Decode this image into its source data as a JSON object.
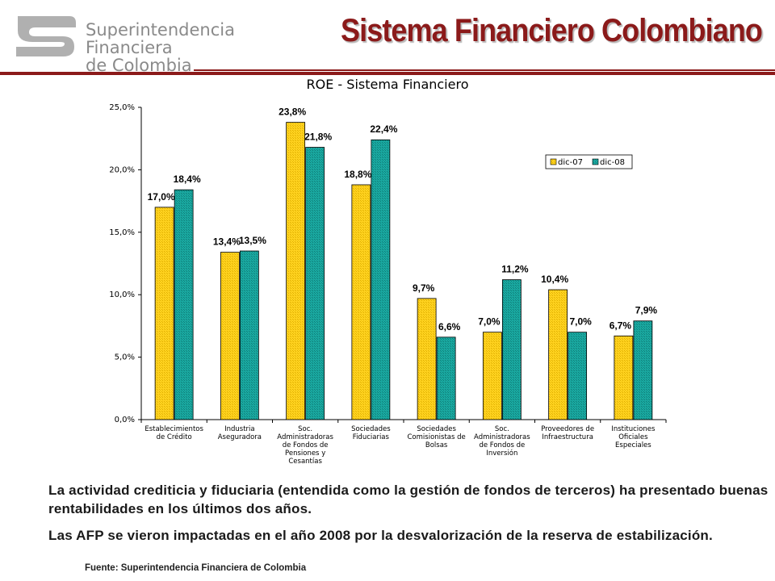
{
  "header": {
    "logo_lines": [
      "Superintendencia",
      "Financiera",
      "de Colombia"
    ],
    "title": "Sistema Financiero Colombiano"
  },
  "colors": {
    "brand": "#8b1a1a",
    "dic07": "#ffd21f",
    "dic08": "#1aa8a0"
  },
  "chart_data": {
    "type": "bar",
    "title": "ROE - Sistema Financiero",
    "categories": [
      "Establecimientos de Crédito",
      "Industria Aseguradora",
      "Soc. Administradoras de Fondos de Pensiones y Cesantías",
      "Sociedades Fiduciarias",
      "Sociedades Comisionistas de Bolsas",
      "Soc. Administradoras de Fondos de Inversión",
      "Proveedores de Infraestructura",
      "Instituciones Oficiales Especiales"
    ],
    "category_label_lines": [
      [
        "Establecimientos",
        "de Crédito"
      ],
      [
        "Industria",
        "Aseguradora"
      ],
      [
        "Soc.",
        "Administradoras",
        "de Fondos de",
        "Pensiones y",
        "Cesantías"
      ],
      [
        "Sociedades",
        "Fiduciarias"
      ],
      [
        "Sociedades",
        "Comisionistas de",
        "Bolsas"
      ],
      [
        "Soc.",
        "Administradoras",
        "de Fondos de",
        "Inversión"
      ],
      [
        "Proveedores de",
        "Infraestructura"
      ],
      [
        "Instituciones",
        "Oficiales",
        "Especiales"
      ]
    ],
    "series": [
      {
        "name": "dic-07",
        "values": [
          17.0,
          13.4,
          23.8,
          18.8,
          9.7,
          7.0,
          10.4,
          6.7
        ],
        "labels": [
          "17,0%",
          "13,4%",
          "23,8%",
          "18,8%",
          "9,7%",
          "7,0%",
          "10,4%",
          "6,7%"
        ]
      },
      {
        "name": "dic-08",
        "values": [
          18.4,
          13.5,
          21.8,
          22.4,
          6.6,
          11.2,
          7.0,
          7.9
        ],
        "labels": [
          "18,4%",
          "13,5%",
          "21,8%",
          "22,4%",
          "6,6%",
          "11,2%",
          "7,0%",
          "7,9%"
        ]
      }
    ],
    "ylim": [
      0,
      25
    ],
    "yticks": [
      0,
      5,
      10,
      15,
      20,
      25
    ],
    "ytick_labels": [
      "0,0%",
      "5,0%",
      "10,0%",
      "15,0%",
      "20,0%",
      "25,0%"
    ],
    "legend_position": "top-right",
    "grid": false
  },
  "text": {
    "paragraph1": "La actividad crediticia y fiduciaria (entendida como la gestión de fondos de terceros) ha presentado buenas rentabilidades en los  últimos dos años.",
    "paragraph2": " Las AFP se vieron impactadas en el  año 2008 por la desvalorización de la reserva de estabilización.",
    "source": "Fuente:  Superintendencia  Financiera de Colombia"
  }
}
